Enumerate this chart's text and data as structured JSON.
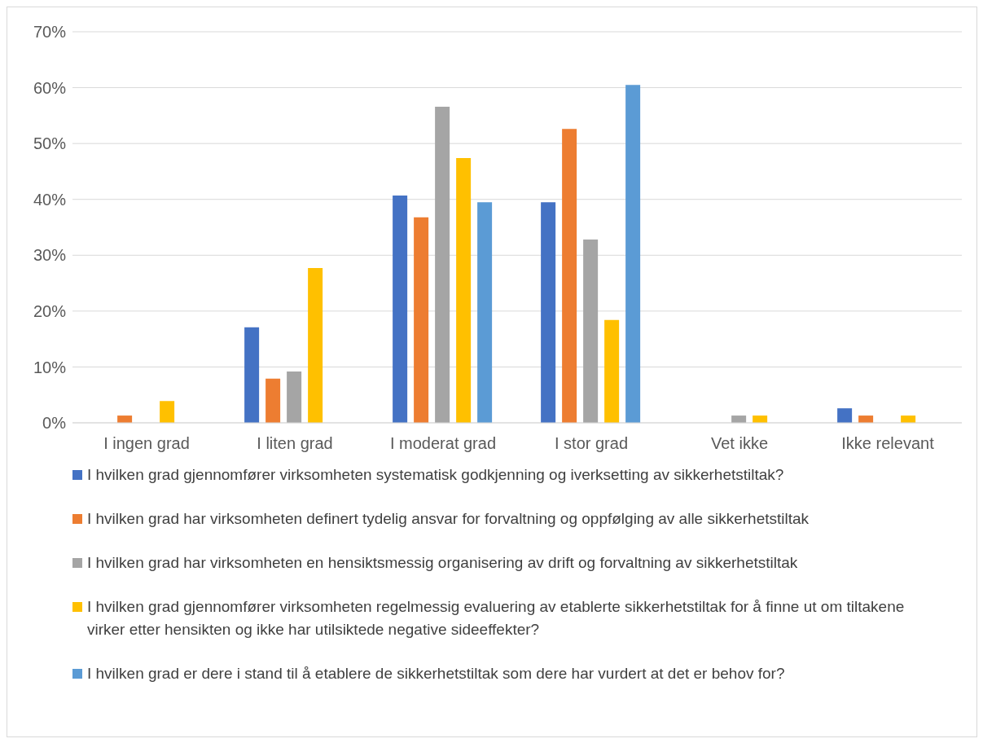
{
  "chart_data": {
    "type": "bar",
    "categories": [
      "I ingen grad",
      "I liten grad",
      "I moderat grad",
      "I stor grad",
      "Vet ikke",
      "Ikke relevant"
    ],
    "series": [
      {
        "name": "I hvilken grad gjennomfører virksomheten systematisk godkjenning og iverksetting av sikkerhetstiltak?",
        "color": "#4472c4",
        "values": [
          0,
          17.1,
          40.7,
          39.5,
          0,
          2.6
        ]
      },
      {
        "name": "I hvilken grad har virksomheten definert tydelig ansvar for forvaltning og oppfølging av alle sikkerhetstiltak",
        "color": "#ed7d31",
        "values": [
          1.3,
          7.9,
          36.8,
          52.6,
          0,
          1.3
        ]
      },
      {
        "name": "I hvilken grad har virksomheten en hensiktsmessig organisering av drift og forvaltning av sikkerhetstiltak",
        "color": "#a5a5a5",
        "values": [
          0,
          9.2,
          56.6,
          32.8,
          1.3,
          0
        ]
      },
      {
        "name": "I hvilken grad gjennomfører virksomheten regelmessig evaluering av etablerte sikkerhetstiltak for å finne ut om tiltakene virker etter hensikten og ikke har utilsiktede negative sideeffekter?",
        "color": "#ffc000",
        "values": [
          3.9,
          27.7,
          47.4,
          18.4,
          1.3,
          1.3
        ]
      },
      {
        "name": "I hvilken grad er dere i stand til å etablere de sikkerhetstiltak som dere har vurdert at det er behov for?",
        "color": "#5b9bd5",
        "values": [
          0,
          0,
          39.5,
          60.5,
          0,
          0
        ]
      }
    ],
    "ylim": [
      0,
      70
    ],
    "yticks": [
      {
        "value": 0,
        "label": "0%"
      },
      {
        "value": 10,
        "label": "10%"
      },
      {
        "value": 20,
        "label": "20%"
      },
      {
        "value": 30,
        "label": "30%"
      },
      {
        "value": 40,
        "label": "40%"
      },
      {
        "value": 50,
        "label": "50%"
      },
      {
        "value": 60,
        "label": "60%"
      },
      {
        "value": 70,
        "label": "70%"
      }
    ],
    "grid": "y",
    "legend": "bottom"
  }
}
